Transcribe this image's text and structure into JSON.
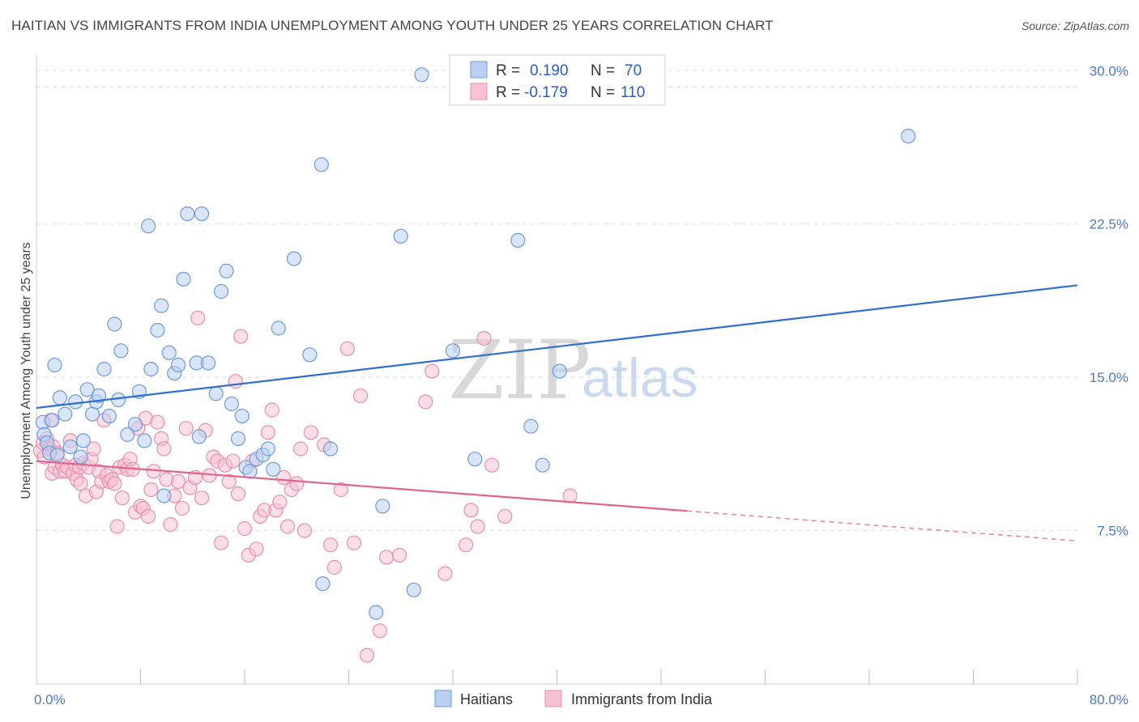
{
  "title": "HAITIAN VS IMMIGRANTS FROM INDIA UNEMPLOYMENT AMONG YOUTH UNDER 25 YEARS CORRELATION CHART",
  "source": "Source: ZipAtlas.com",
  "watermark": {
    "zip": "ZIP",
    "atlas": "atlas"
  },
  "stats": [
    {
      "r_label": "R =",
      "r_value": "0.190",
      "n_label": "N =",
      "n_value": "70"
    },
    {
      "r_label": "R =",
      "r_value": "-0.179",
      "n_label": "N =",
      "n_value": "110"
    }
  ],
  "colors": {
    "haitians_fill": "#b9d0f2",
    "haitians_stroke": "#6f9ad8",
    "haitians_line": "#2e6fd0",
    "india_fill": "#f7c3d3",
    "india_stroke": "#e68fae",
    "india_line": "#e0628f",
    "axis_text": "#4a78c8",
    "grid": "#dcdcdc"
  },
  "chart_data": {
    "type": "scatter",
    "title": "HAITIAN VS IMMIGRANTS FROM INDIA UNEMPLOYMENT AMONG YOUTH UNDER 25 YEARS CORRELATION CHART",
    "xlabel": "",
    "ylabel": "Unemployment Among Youth under 25 years",
    "xlim": [
      0,
      80
    ],
    "ylim": [
      0,
      31
    ],
    "x_tick_labels": [
      "0.0%",
      "80.0%"
    ],
    "y_ticks": [
      7.5,
      15.0,
      22.5,
      30.0
    ],
    "y_tick_labels": [
      "7.5%",
      "15.0%",
      "22.5%",
      "30.0%"
    ],
    "grid": "horizontal dashed",
    "legend_position": "bottom-center",
    "series": [
      {
        "name": "Haitians",
        "r": 0.19,
        "n": 70,
        "trend": {
          "x0": 0,
          "y0": 13.5,
          "x1": 80,
          "y1": 19.5,
          "solid_until": 80
        },
        "points": [
          [
            0.5,
            12.8
          ],
          [
            0.6,
            12.2
          ],
          [
            0.8,
            11.8
          ],
          [
            1.0,
            11.3
          ],
          [
            1.2,
            12.9
          ],
          [
            1.4,
            15.6
          ],
          [
            1.6,
            11.2
          ],
          [
            1.8,
            14.0
          ],
          [
            2.2,
            13.2
          ],
          [
            2.6,
            11.6
          ],
          [
            3.0,
            13.8
          ],
          [
            3.4,
            11.1
          ],
          [
            3.6,
            11.9
          ],
          [
            3.9,
            14.4
          ],
          [
            4.3,
            13.2
          ],
          [
            4.6,
            13.8
          ],
          [
            4.8,
            14.1
          ],
          [
            5.2,
            15.4
          ],
          [
            5.6,
            13.1
          ],
          [
            6.0,
            17.6
          ],
          [
            6.3,
            13.9
          ],
          [
            6.5,
            16.3
          ],
          [
            7.0,
            12.2
          ],
          [
            7.6,
            12.7
          ],
          [
            7.9,
            14.3
          ],
          [
            8.3,
            11.9
          ],
          [
            8.6,
            22.4
          ],
          [
            8.8,
            15.4
          ],
          [
            9.3,
            17.3
          ],
          [
            9.6,
            18.5
          ],
          [
            9.8,
            9.2
          ],
          [
            10.2,
            16.2
          ],
          [
            10.6,
            15.2
          ],
          [
            10.9,
            15.6
          ],
          [
            11.3,
            19.8
          ],
          [
            11.6,
            23.0
          ],
          [
            12.3,
            15.7
          ],
          [
            12.5,
            12.1
          ],
          [
            12.7,
            23.0
          ],
          [
            13.2,
            15.7
          ],
          [
            13.8,
            14.2
          ],
          [
            14.2,
            19.2
          ],
          [
            14.6,
            20.2
          ],
          [
            15.0,
            13.7
          ],
          [
            15.5,
            12.0
          ],
          [
            15.8,
            13.1
          ],
          [
            16.1,
            10.6
          ],
          [
            16.4,
            10.4
          ],
          [
            16.9,
            11.0
          ],
          [
            17.4,
            11.2
          ],
          [
            17.8,
            11.5
          ],
          [
            18.2,
            10.5
          ],
          [
            18.6,
            17.4
          ],
          [
            19.8,
            20.8
          ],
          [
            21.0,
            16.1
          ],
          [
            21.9,
            25.4
          ],
          [
            22.0,
            4.9
          ],
          [
            22.6,
            11.5
          ],
          [
            26.1,
            3.5
          ],
          [
            26.6,
            8.7
          ],
          [
            28.0,
            21.9
          ],
          [
            29.0,
            4.6
          ],
          [
            29.6,
            29.8
          ],
          [
            32.0,
            16.3
          ],
          [
            33.7,
            11.0
          ],
          [
            37.0,
            21.7
          ],
          [
            38.0,
            12.6
          ],
          [
            38.9,
            10.7
          ],
          [
            40.2,
            15.3
          ],
          [
            67.0,
            26.8
          ]
        ]
      },
      {
        "name": "Immigrants from India",
        "r": -0.179,
        "n": 110,
        "trend": {
          "x0": 0,
          "y0": 10.9,
          "x1": 80,
          "y1": 7.0,
          "solid_until": 50
        },
        "points": [
          [
            0.3,
            11.4
          ],
          [
            0.5,
            11.8
          ],
          [
            0.6,
            11.1
          ],
          [
            0.8,
            12.0
          ],
          [
            1.0,
            11.5
          ],
          [
            1.1,
            12.9
          ],
          [
            1.2,
            10.3
          ],
          [
            1.3,
            11.6
          ],
          [
            1.4,
            10.6
          ],
          [
            1.6,
            11.3
          ],
          [
            1.8,
            10.4
          ],
          [
            2.0,
            10.7
          ],
          [
            2.2,
            10.4
          ],
          [
            2.4,
            10.6
          ],
          [
            2.6,
            11.9
          ],
          [
            2.8,
            10.3
          ],
          [
            3.0,
            10.7
          ],
          [
            3.1,
            10.0
          ],
          [
            3.3,
            10.6
          ],
          [
            3.4,
            9.8
          ],
          [
            3.6,
            10.8
          ],
          [
            3.8,
            9.2
          ],
          [
            4.0,
            10.6
          ],
          [
            4.2,
            11.0
          ],
          [
            4.4,
            11.5
          ],
          [
            4.6,
            9.4
          ],
          [
            4.8,
            10.4
          ],
          [
            5.0,
            9.9
          ],
          [
            5.2,
            12.9
          ],
          [
            5.4,
            10.2
          ],
          [
            5.6,
            9.9
          ],
          [
            5.8,
            10.0
          ],
          [
            6.0,
            9.8
          ],
          [
            6.2,
            7.7
          ],
          [
            6.4,
            10.6
          ],
          [
            6.6,
            9.1
          ],
          [
            6.8,
            10.7
          ],
          [
            7.0,
            10.5
          ],
          [
            7.2,
            11.0
          ],
          [
            7.4,
            10.5
          ],
          [
            7.6,
            8.4
          ],
          [
            7.8,
            12.5
          ],
          [
            8.0,
            8.7
          ],
          [
            8.2,
            8.6
          ],
          [
            8.4,
            13.0
          ],
          [
            8.6,
            8.2
          ],
          [
            8.8,
            9.5
          ],
          [
            9.0,
            10.4
          ],
          [
            9.3,
            12.8
          ],
          [
            9.6,
            12.0
          ],
          [
            9.8,
            11.5
          ],
          [
            10.0,
            10.0
          ],
          [
            10.3,
            7.8
          ],
          [
            10.6,
            9.2
          ],
          [
            10.9,
            9.9
          ],
          [
            11.2,
            8.6
          ],
          [
            11.5,
            12.5
          ],
          [
            11.8,
            9.6
          ],
          [
            12.2,
            10.1
          ],
          [
            12.4,
            17.9
          ],
          [
            12.7,
            9.1
          ],
          [
            13.0,
            12.4
          ],
          [
            13.3,
            10.2
          ],
          [
            13.6,
            11.1
          ],
          [
            13.9,
            10.9
          ],
          [
            14.2,
            6.9
          ],
          [
            14.5,
            10.7
          ],
          [
            14.8,
            9.9
          ],
          [
            15.1,
            10.9
          ],
          [
            15.3,
            14.8
          ],
          [
            15.5,
            9.3
          ],
          [
            15.7,
            17.0
          ],
          [
            16.0,
            7.6
          ],
          [
            16.3,
            6.3
          ],
          [
            16.6,
            10.9
          ],
          [
            16.9,
            6.6
          ],
          [
            17.2,
            8.2
          ],
          [
            17.5,
            8.5
          ],
          [
            17.8,
            12.3
          ],
          [
            18.1,
            13.4
          ],
          [
            18.4,
            8.5
          ],
          [
            18.7,
            8.9
          ],
          [
            19.0,
            10.1
          ],
          [
            19.3,
            7.7
          ],
          [
            19.6,
            9.5
          ],
          [
            20.0,
            9.8
          ],
          [
            20.3,
            11.5
          ],
          [
            20.6,
            7.5
          ],
          [
            21.1,
            12.3
          ],
          [
            22.1,
            11.7
          ],
          [
            22.6,
            6.8
          ],
          [
            22.9,
            5.7
          ],
          [
            23.4,
            9.5
          ],
          [
            23.9,
            16.4
          ],
          [
            24.4,
            6.9
          ],
          [
            24.9,
            14.1
          ],
          [
            25.4,
            1.4
          ],
          [
            26.4,
            2.6
          ],
          [
            26.9,
            6.2
          ],
          [
            27.9,
            6.3
          ],
          [
            29.9,
            13.8
          ],
          [
            30.4,
            15.3
          ],
          [
            31.4,
            5.4
          ],
          [
            33.0,
            6.8
          ],
          [
            33.4,
            8.5
          ],
          [
            33.9,
            7.7
          ],
          [
            34.4,
            16.9
          ],
          [
            35.0,
            10.7
          ],
          [
            36.0,
            8.2
          ],
          [
            41.0,
            9.2
          ]
        ]
      }
    ]
  }
}
